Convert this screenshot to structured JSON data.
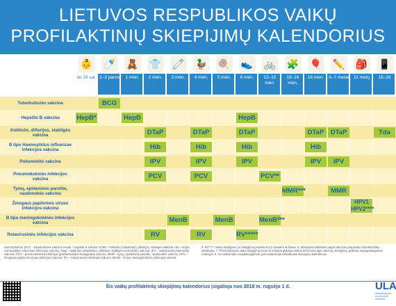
{
  "header": {
    "title_line1": "LIETUVOS RESPUBLIKOS VAIKŲ",
    "title_line2": "PROFILAKTINIŲ SKIEPIJIMŲ KALENDORIUS"
  },
  "ages": [
    "Iki 24 val.",
    "2–3 paros",
    "1 mėn.",
    "2 mėn.",
    "3 mėn.",
    "4 mėn.",
    "5 mėn.",
    "6 mėn.",
    "12–15 mėn.",
    "15–16 mėn.",
    "18 mėn.",
    "6–7 metai",
    "11 metų",
    "15–16"
  ],
  "rows": [
    {
      "label": "Tuberkuliozės vakcina",
      "cells": [
        {
          "col": 1,
          "text": "BCG"
        }
      ]
    },
    {
      "label": "Hepatito B vakcina",
      "cells": [
        {
          "col": 0,
          "text": "HepB*"
        },
        {
          "col": 2,
          "text": "HepB"
        },
        {
          "col": 7,
          "text": "HepB"
        }
      ]
    },
    {
      "label": "Kokliušo, difterijos, stabligės vakcina",
      "cells": [
        {
          "col": 3,
          "text": "DTaP"
        },
        {
          "col": 5,
          "text": "DTaP"
        },
        {
          "col": 7,
          "text": "DTaP"
        },
        {
          "col": 10,
          "text": "DTaP"
        },
        {
          "col": 11,
          "text": "DTaP"
        },
        {
          "col": 13,
          "text": "Tda"
        }
      ]
    },
    {
      "label": "B tipo Haemophilus influenzae infekcijos vakcina",
      "cells": [
        {
          "col": 3,
          "text": "Hib"
        },
        {
          "col": 5,
          "text": "Hib"
        },
        {
          "col": 7,
          "text": "Hib"
        },
        {
          "col": 10,
          "text": "Hib"
        }
      ]
    },
    {
      "label": "Poliomielito vakcina",
      "cells": [
        {
          "col": 3,
          "text": "IPV"
        },
        {
          "col": 5,
          "text": "IPV"
        },
        {
          "col": 7,
          "text": "IPV"
        },
        {
          "col": 10,
          "text": "IPV"
        },
        {
          "col": 11,
          "text": "IPV"
        }
      ]
    },
    {
      "label": "Pneumokokinės infekcijos vakcina",
      "cells": [
        {
          "col": 3,
          "text": "PCV"
        },
        {
          "col": 5,
          "text": "PCV"
        },
        {
          "col": 8,
          "text": "PCV**"
        }
      ]
    },
    {
      "label": "Tymų, epideminio parotito, raudonukės vakcina",
      "cells": [
        {
          "col": 9,
          "text": "MMR***"
        },
        {
          "col": 11,
          "text": "MMR"
        }
      ]
    },
    {
      "label": "Žmogaus papilomos viruso infekcijos vakcina",
      "cells": [
        {
          "col": 12,
          "text": "HPV1"
        },
        {
          "col": 12,
          "text": "HPV2****"
        }
      ]
    },
    {
      "label": "B tipo meningokokinės infekcijos vakcina",
      "cells": [
        {
          "col": 4,
          "text": "MenB"
        },
        {
          "col": 6,
          "text": "MenB"
        },
        {
          "col": 8,
          "text": "MenB***"
        }
      ]
    },
    {
      "label": "Rotavirusinės infekcijos vakcina",
      "cells": [
        {
          "col": 3,
          "text": "RV"
        },
        {
          "col": 5,
          "text": "RV"
        },
        {
          "col": 7,
          "text": "RV*****"
        }
      ]
    }
  ],
  "notes_left": "Sutrumpinimai: BCG – tuberkuliozės vakcina; HepB – hepatito B vakcina; DTaP – kokliušo (neląstelinė), difterijos, stabligės vakcina; Hib – B tipo Haemophilus influenzae infekcijos vakcina; Tdap – kokliušo (neląstelinė), difterijos, stabligės (sumažinto) vakcina; IPV – inaktyvuota poliomielito vakcina; PCV – pneumokokinės infekcijos (polisacharidinė konjuguota) vakcina; MMR – tymų, epideminio parotito, raudonukės vakcina; HPV – žmogaus papilomos viruso infekcijos vakcina; RV – rotavirusinės infekcijos vakcina; MenB – B tipo meningokokinės infekcijos vakcina.",
  "notes_right": "5. RV***** vaikai skiepijami, jei skiepijimą pradėta iki 12 savaitės amžiaus. 6. Skiepijimai atliekami pagal vakcinos preparato charakteristikų santrauką. 7. Prieš kiekvieną vaiko skiepijimą tėvus ar teisėtus globėjus būtina informuoti apie vakciną, skiepijimą, galimas nepageidaujamas reakcijas. 8. Jei vaikas laiku nepaskiepijamas, jam sudaromas individualus skiepijimų kalendorius.",
  "footer": {
    "text": "Šis vaikų profilaktinių skiepijimų kalendorius įsigalioja nuo 2018 m. rugsėjo 1 d."
  },
  "logo": {
    "text": "ULAC",
    "sub": "UŽKREČIAMŲJŲ LIGŲ IR AIDS CENTRAS"
  }
}
